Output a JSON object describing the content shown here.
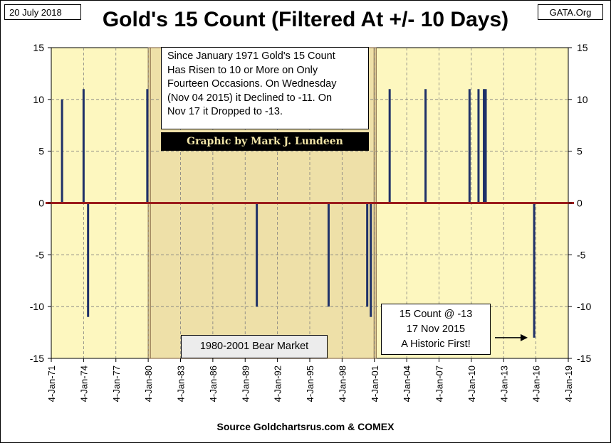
{
  "header": {
    "date": "20 July 2018",
    "site": "GATA.Org",
    "title": "Gold's 15 Count (Filtered At +/- 10 Days)"
  },
  "source": "Source Goldchartsrus.com & COMEX",
  "annotations": {
    "note_lines": [
      "Since January 1971 Gold's 15 Count",
      "Has Risen to 10 or More on Only",
      "Fourteen Occasions.  On Wednesday",
      "(Nov 04 2015) it Declined to -11.  On",
      "Nov 17 it Dropped to -13."
    ],
    "credit": "Graphic by Mark J. Lundeen",
    "bear_market": "1980-2001 Bear Market",
    "callout_lines": [
      "15 Count @ -13",
      "17 Nov 2015",
      "A Historic First!"
    ]
  },
  "colors": {
    "plot_bg": "#fdf7bf",
    "bear_bg": "#eee0a8",
    "bar": "#1f3168",
    "zero_line": "#9b1c1c",
    "grid": "#7f7f7f",
    "credit_text": "#f3e6a8"
  },
  "chart_data": {
    "type": "bar",
    "title": "Gold's 15 Count (Filtered At +/- 10 Days)",
    "ylim": [
      -15,
      15
    ],
    "y_ticks": [
      15,
      10,
      5,
      0,
      -5,
      -10,
      -15
    ],
    "x_ticks": [
      "4-Jan-71",
      "4-Jan-74",
      "4-Jan-77",
      "4-Jan-80",
      "4-Jan-83",
      "4-Jan-86",
      "4-Jan-89",
      "4-Jan-92",
      "4-Jan-95",
      "4-Jan-98",
      "4-Jan-01",
      "4-Jan-04",
      "4-Jan-07",
      "4-Jan-10",
      "4-Jan-13",
      "4-Jan-16",
      "4-Jan-19"
    ],
    "grid": true,
    "shaded_period": {
      "label": "1980-2001 Bear Market",
      "start": "1980-01",
      "end": "2001-03"
    },
    "series": [
      {
        "points": [
          {
            "date": "1972-01",
            "value": 10
          },
          {
            "date": "1974-01",
            "value": 11
          },
          {
            "date": "1974-06",
            "value": -11
          },
          {
            "date": "1979-12",
            "value": 11
          },
          {
            "date": "1990-02",
            "value": -10
          },
          {
            "date": "1996-10",
            "value": -10
          },
          {
            "date": "2000-05",
            "value": -10
          },
          {
            "date": "2000-09",
            "value": -11
          },
          {
            "date": "2002-06",
            "value": 11
          },
          {
            "date": "2005-10",
            "value": 11
          },
          {
            "date": "2009-11",
            "value": 11
          },
          {
            "date": "2010-09",
            "value": 11
          },
          {
            "date": "2011-03",
            "value": 11
          },
          {
            "date": "2011-05",
            "value": 11
          },
          {
            "date": "2015-11",
            "value": -13
          }
        ]
      }
    ]
  }
}
